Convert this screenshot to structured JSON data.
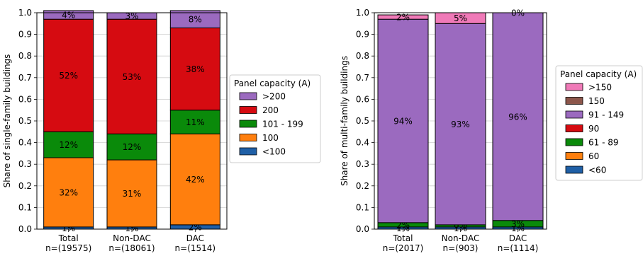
{
  "chart_data": [
    {
      "type": "bar",
      "stacked": true,
      "ylabel": "Share of single-family buildings",
      "ylim": [
        0,
        1.0
      ],
      "yticks": [
        "0.0",
        "0.1",
        "0.2",
        "0.3",
        "0.4",
        "0.5",
        "0.6",
        "0.7",
        "0.8",
        "0.9",
        "1.0"
      ],
      "categories": [
        "Total",
        "Non-DAC",
        "DAC"
      ],
      "category_sublabels": [
        "n=(19575)",
        "n=(18061)",
        "n=(1514)"
      ],
      "grid": "horizontal",
      "legend_placement": "right",
      "legend_title": "Panel capacity (A)",
      "legend_order": [
        ">200",
        "200",
        "101 - 199",
        "100",
        "<100"
      ],
      "series": [
        {
          "name": "<100",
          "color": "#1f5fa6",
          "values": [
            0.01,
            0.01,
            0.02
          ],
          "labels": [
            "1%",
            "1%",
            "2%"
          ]
        },
        {
          "name": "100",
          "color": "#ff7f0e",
          "values": [
            0.32,
            0.31,
            0.42
          ],
          "labels": [
            "32%",
            "31%",
            "42%"
          ]
        },
        {
          "name": "101 - 199",
          "color": "#0a8a0a",
          "values": [
            0.12,
            0.12,
            0.11
          ],
          "labels": [
            "12%",
            "12%",
            "11%"
          ]
        },
        {
          "name": "200",
          "color": "#d60b11",
          "values": [
            0.52,
            0.53,
            0.38
          ],
          "labels": [
            "52%",
            "53%",
            "38%"
          ]
        },
        {
          "name": ">200",
          "color": "#9b6abf",
          "values": [
            0.04,
            0.03,
            0.08
          ],
          "labels": [
            "4%",
            "3%",
            "8%"
          ]
        }
      ]
    },
    {
      "type": "bar",
      "stacked": true,
      "ylabel": "Share of multi-family buildings",
      "ylim": [
        0,
        1.0
      ],
      "yticks": [
        "0.0",
        "0.1",
        "0.2",
        "0.3",
        "0.4",
        "0.5",
        "0.6",
        "0.7",
        "0.8",
        "0.9",
        "1.0"
      ],
      "categories": [
        "Total",
        "Non-DAC",
        "DAC"
      ],
      "category_sublabels": [
        "n=(2017)",
        "n=(903)",
        "n=(1114)"
      ],
      "grid": "horizontal",
      "legend_placement": "right",
      "legend_title": "Panel capacity (A)",
      "legend_order": [
        ">150",
        "150",
        "91 - 149",
        "90",
        "61 - 89",
        "60",
        "<60"
      ],
      "series": [
        {
          "name": "<60",
          "color": "#1f5fa6",
          "values": [
            0.01,
            0.01,
            0.01
          ],
          "labels": [
            "1%",
            "1%",
            "1%"
          ]
        },
        {
          "name": "60",
          "color": "#ff7f0e",
          "values": [
            0.0,
            0.0,
            0.0
          ],
          "labels": [
            "",
            "",
            ""
          ]
        },
        {
          "name": "61 - 89",
          "color": "#0a8a0a",
          "values": [
            0.02,
            0.01,
            0.03
          ],
          "labels": [
            "2%",
            "",
            "3%"
          ]
        },
        {
          "name": "90",
          "color": "#d60b11",
          "values": [
            0.0,
            0.0,
            0.0
          ],
          "labels": [
            "",
            "0%",
            ""
          ]
        },
        {
          "name": "91 - 149",
          "color": "#9b6abf",
          "values": [
            0.94,
            0.93,
            0.96
          ],
          "labels": [
            "94%",
            "93%",
            "96%"
          ]
        },
        {
          "name": "150",
          "color": "#8c564b",
          "values": [
            0.0,
            0.0,
            0.0
          ],
          "labels": [
            "",
            "",
            ""
          ]
        },
        {
          "name": ">150",
          "color": "#f07ab8",
          "values": [
            0.02,
            0.05,
            0.0
          ],
          "labels": [
            "2%",
            "5%",
            "0%"
          ]
        }
      ]
    }
  ]
}
